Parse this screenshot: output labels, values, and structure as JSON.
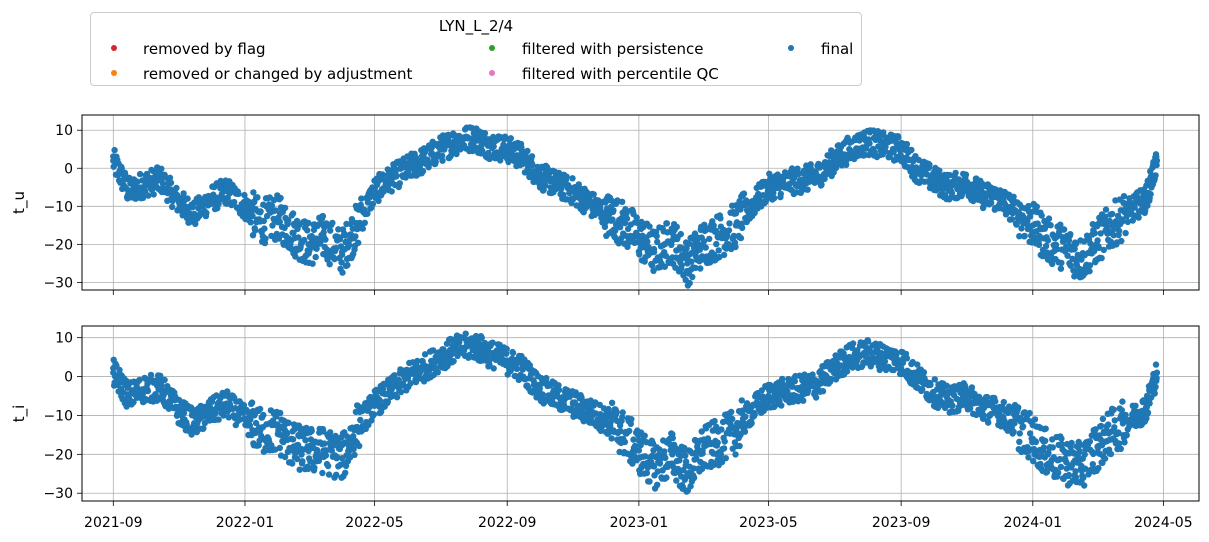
{
  "legend": {
    "title": "LYN_L_2/4",
    "entries": [
      {
        "label": "removed by flag",
        "color": "#d62728"
      },
      {
        "label": "removed or changed by adjustment",
        "color": "#ff7f0e"
      },
      {
        "label": "filtered with persistence",
        "color": "#2ca02c"
      },
      {
        "label": "filtered with percentile QC",
        "color": "#e377c2"
      },
      {
        "label": "final",
        "color": "#1f77b4"
      }
    ]
  },
  "chart_data": [
    {
      "type": "scatter",
      "title": "",
      "xlabel": "",
      "ylabel": "t_u",
      "ylim": [
        -32,
        14
      ],
      "yticks": [
        "10",
        "0",
        "−10",
        "−20",
        "−30"
      ],
      "xlim": [
        "2021-08-03",
        "2024-06-03"
      ],
      "xticks": [
        "2021-09",
        "2022-01",
        "2022-05",
        "2022-09",
        "2023-01",
        "2023-05",
        "2023-09",
        "2024-01",
        "2024-05"
      ],
      "grid": true,
      "series": [
        {
          "name": "final",
          "color": "#1f77b4",
          "x": [
            "2021-09-01",
            "2021-09-15",
            "2021-10-01",
            "2021-10-15",
            "2021-11-01",
            "2021-11-15",
            "2021-12-01",
            "2021-12-15",
            "2022-01-01",
            "2022-01-15",
            "2022-02-01",
            "2022-02-15",
            "2022-03-01",
            "2022-03-15",
            "2022-04-01",
            "2022-04-15",
            "2022-05-01",
            "2022-05-15",
            "2022-06-01",
            "2022-06-15",
            "2022-07-01",
            "2022-07-15",
            "2022-08-01",
            "2022-08-15",
            "2022-09-01",
            "2022-09-15",
            "2022-10-01",
            "2022-10-15",
            "2022-11-01",
            "2022-11-15",
            "2022-12-01",
            "2022-12-15",
            "2023-01-01",
            "2023-01-15",
            "2023-02-01",
            "2023-02-15",
            "2023-03-01",
            "2023-03-15",
            "2023-04-01",
            "2023-04-15",
            "2023-05-01",
            "2023-05-15",
            "2023-06-01",
            "2023-06-15",
            "2023-07-01",
            "2023-07-15",
            "2023-08-01",
            "2023-08-15",
            "2023-09-01",
            "2023-09-15",
            "2023-10-01",
            "2023-10-15",
            "2023-11-01",
            "2023-11-15",
            "2023-12-01",
            "2023-12-15",
            "2024-01-01",
            "2024-01-15",
            "2024-02-01",
            "2024-02-15",
            "2024-03-01",
            "2024-03-15",
            "2024-04-01",
            "2024-04-15",
            "2024-04-25"
          ],
          "y": [
            2,
            -6,
            -4,
            -3,
            -9,
            -12,
            -8,
            -6,
            -10,
            -14,
            -13,
            -17,
            -20,
            -18,
            -22,
            -15,
            -6,
            -3,
            0,
            2,
            5,
            7,
            8,
            6,
            5,
            3,
            -2,
            -4,
            -6,
            -9,
            -12,
            -14,
            -18,
            -22,
            -19,
            -25,
            -20,
            -18,
            -15,
            -10,
            -5,
            -4,
            -3,
            -2,
            2,
            5,
            7,
            6,
            5,
            0,
            -3,
            -5,
            -4,
            -7,
            -8,
            -11,
            -15,
            -19,
            -21,
            -24,
            -19,
            -15,
            -11,
            -8,
            2
          ]
        }
      ]
    },
    {
      "type": "scatter",
      "title": "",
      "xlabel": "",
      "ylabel": "t_i",
      "ylim": [
        -32,
        13
      ],
      "yticks": [
        "10",
        "0",
        "−10",
        "−20",
        "−30"
      ],
      "xlim": [
        "2021-08-03",
        "2024-06-03"
      ],
      "xticks": [
        "2021-09",
        "2022-01",
        "2022-05",
        "2022-09",
        "2023-01",
        "2023-05",
        "2023-09",
        "2024-01",
        "2024-05"
      ],
      "grid": true,
      "series": [
        {
          "name": "final",
          "color": "#1f77b4",
          "x": [
            "2021-09-01",
            "2021-09-15",
            "2021-10-01",
            "2021-10-15",
            "2021-11-01",
            "2021-11-15",
            "2021-12-01",
            "2021-12-15",
            "2022-01-01",
            "2022-01-15",
            "2022-02-01",
            "2022-02-15",
            "2022-03-01",
            "2022-03-15",
            "2022-04-01",
            "2022-04-15",
            "2022-05-01",
            "2022-05-15",
            "2022-06-01",
            "2022-06-15",
            "2022-07-01",
            "2022-07-15",
            "2022-08-01",
            "2022-08-15",
            "2022-09-01",
            "2022-09-15",
            "2022-10-01",
            "2022-10-15",
            "2022-11-01",
            "2022-11-15",
            "2022-12-01",
            "2022-12-15",
            "2023-01-01",
            "2023-01-15",
            "2023-02-01",
            "2023-02-15",
            "2023-03-01",
            "2023-03-15",
            "2023-04-01",
            "2023-04-15",
            "2023-05-01",
            "2023-05-15",
            "2023-06-01",
            "2023-06-15",
            "2023-07-01",
            "2023-07-15",
            "2023-08-01",
            "2023-08-15",
            "2023-09-01",
            "2023-09-15",
            "2023-10-01",
            "2023-10-15",
            "2023-11-01",
            "2023-11-15",
            "2023-12-01",
            "2023-12-15",
            "2024-01-01",
            "2024-01-15",
            "2024-02-01",
            "2024-02-15",
            "2024-03-01",
            "2024-03-15",
            "2024-04-01",
            "2024-04-15",
            "2024-04-25"
          ],
          "y": [
            1,
            -5,
            -3,
            -3,
            -9,
            -12,
            -9,
            -7,
            -11,
            -14,
            -14,
            -18,
            -19,
            -19,
            -21,
            -13,
            -7,
            -4,
            0,
            2,
            5,
            7,
            8,
            6,
            4,
            2,
            -3,
            -5,
            -7,
            -9,
            -11,
            -14,
            -19,
            -23,
            -20,
            -25,
            -19,
            -17,
            -14,
            -9,
            -5,
            -4,
            -3,
            -2,
            2,
            5,
            6,
            5,
            4,
            0,
            -4,
            -6,
            -5,
            -8,
            -9,
            -12,
            -16,
            -20,
            -22,
            -23,
            -18,
            -14,
            -11,
            -8,
            1
          ]
        }
      ]
    }
  ]
}
